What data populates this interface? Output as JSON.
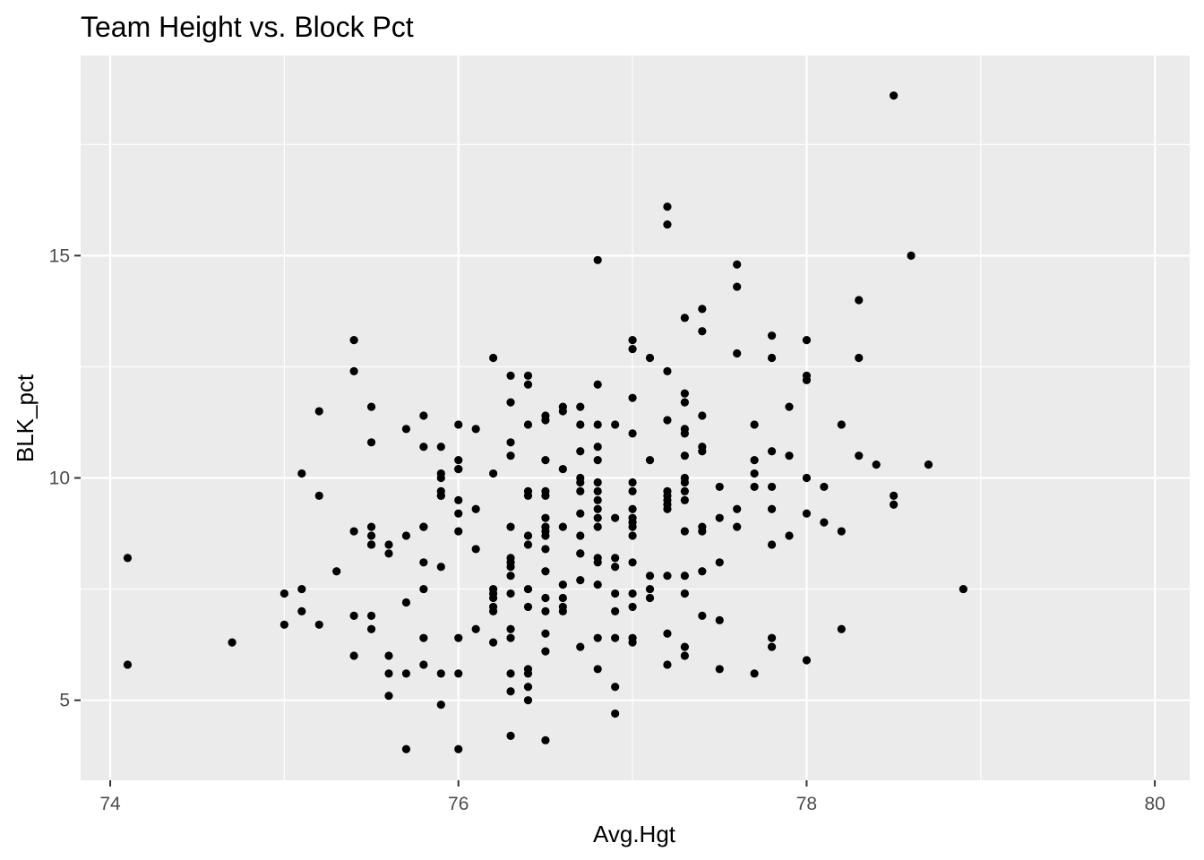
{
  "chart_data": {
    "type": "scatter",
    "title": "Team Height vs. Block Pct",
    "xlabel": "Avg.Hgt",
    "ylabel": "BLK_pct",
    "xlim": [
      73.83,
      80.2
    ],
    "ylim": [
      3.2,
      19.5
    ],
    "x_ticks": [
      74,
      76,
      78,
      80
    ],
    "y_ticks": [
      5,
      10,
      15
    ],
    "x_minor": [
      75,
      77,
      79
    ],
    "y_minor": [
      7.5,
      12.5,
      17.5
    ],
    "grid": true,
    "theme": "ggplot2 grey",
    "point_color": "#000000",
    "panel_color": "#ebebeb",
    "x": [
      74.1,
      74.1,
      74.7,
      75.0,
      75.0,
      75.1,
      75.1,
      75.1,
      75.2,
      75.2,
      75.2,
      75.3,
      75.4,
      75.4,
      75.4,
      75.4,
      75.4,
      75.5,
      75.5,
      75.5,
      75.5,
      75.5,
      75.5,
      75.5,
      75.5,
      75.6,
      75.6,
      75.6,
      75.6,
      75.6,
      75.7,
      75.7,
      75.7,
      75.7,
      75.7,
      75.8,
      75.8,
      75.8,
      75.8,
      75.8,
      75.8,
      75.8,
      75.8,
      75.9,
      75.9,
      75.9,
      75.9,
      75.9,
      75.9,
      75.9,
      75.9,
      75.9,
      76.0,
      76.0,
      76.0,
      76.0,
      76.0,
      76.0,
      76.0,
      76.0,
      76.0,
      76.0,
      76.1,
      76.1,
      76.1,
      76.1,
      76.2,
      76.2,
      76.2,
      76.2,
      76.2,
      76.2,
      76.2,
      76.2,
      76.3,
      76.3,
      76.3,
      76.3,
      76.3,
      76.3,
      76.3,
      76.3,
      76.3,
      76.3,
      76.3,
      76.3,
      76.3,
      76.3,
      76.3,
      76.4,
      76.4,
      76.4,
      76.4,
      76.4,
      76.4,
      76.4,
      76.4,
      76.4,
      76.4,
      76.4,
      76.4,
      76.4,
      76.5,
      76.5,
      76.5,
      76.5,
      76.5,
      76.5,
      76.5,
      76.5,
      76.5,
      76.5,
      76.5,
      76.5,
      76.5,
      76.5,
      76.5,
      76.5,
      76.6,
      76.6,
      76.6,
      76.6,
      76.6,
      76.6,
      76.6,
      76.6,
      76.7,
      76.7,
      76.7,
      76.7,
      76.7,
      76.7,
      76.7,
      76.7,
      76.7,
      76.7,
      76.7,
      76.7,
      76.8,
      76.8,
      76.8,
      76.8,
      76.8,
      76.8,
      76.8,
      76.8,
      76.8,
      76.8,
      76.8,
      76.8,
      76.8,
      76.8,
      76.8,
      76.8,
      76.9,
      76.9,
      76.9,
      76.9,
      76.9,
      76.9,
      76.9,
      76.9,
      76.9,
      77.0,
      77.0,
      77.0,
      77.0,
      77.0,
      77.0,
      77.0,
      77.0,
      77.0,
      77.0,
      77.0,
      77.0,
      77.0,
      77.0,
      77.0,
      77.0,
      77.1,
      77.1,
      77.1,
      77.1,
      77.1,
      77.2,
      77.2,
      77.2,
      77.2,
      77.2,
      77.2,
      77.2,
      77.2,
      77.2,
      77.2,
      77.2,
      77.2,
      77.3,
      77.3,
      77.3,
      77.3,
      77.3,
      77.3,
      77.3,
      77.3,
      77.3,
      77.3,
      77.3,
      77.3,
      77.3,
      77.3,
      77.3,
      77.4,
      77.4,
      77.4,
      77.4,
      77.4,
      77.4,
      77.4,
      77.4,
      77.4,
      77.5,
      77.5,
      77.5,
      77.5,
      77.5,
      77.6,
      77.6,
      77.6,
      77.6,
      77.6,
      77.7,
      77.7,
      77.7,
      77.7,
      77.7,
      77.8,
      77.8,
      77.8,
      77.8,
      77.8,
      77.8,
      77.8,
      77.8,
      77.9,
      77.9,
      77.9,
      78.0,
      78.0,
      78.0,
      78.0,
      78.0,
      78.0,
      78.1,
      78.1,
      78.2,
      78.2,
      78.2,
      78.3,
      78.3,
      78.3,
      78.4,
      78.5,
      78.5,
      78.5,
      78.6,
      78.7,
      78.9
    ],
    "y": [
      8.2,
      5.8,
      6.3,
      7.4,
      6.7,
      10.1,
      7.5,
      7.0,
      11.5,
      9.6,
      6.7,
      7.9,
      13.1,
      12.4,
      8.8,
      6.9,
      6.0,
      11.6,
      10.8,
      8.9,
      8.7,
      8.5,
      6.9,
      6.6,
      8.5,
      8.5,
      8.3,
      6.0,
      5.6,
      5.1,
      11.1,
      8.7,
      7.2,
      5.6,
      3.9,
      11.4,
      10.7,
      8.9,
      8.1,
      7.5,
      6.4,
      5.8,
      8.9,
      10.7,
      10.1,
      10.0,
      9.7,
      9.6,
      8.0,
      5.6,
      4.9,
      9.6,
      11.2,
      10.4,
      10.2,
      9.5,
      9.2,
      8.8,
      6.4,
      5.6,
      3.9,
      10.2,
      11.1,
      9.3,
      8.4,
      6.6,
      12.7,
      10.1,
      7.5,
      7.4,
      7.1,
      7.0,
      6.3,
      7.3,
      12.3,
      11.7,
      10.8,
      10.5,
      8.9,
      8.2,
      8.0,
      7.8,
      7.4,
      6.6,
      6.4,
      5.6,
      5.2,
      4.2,
      8.1,
      12.3,
      12.1,
      11.2,
      9.7,
      9.6,
      8.7,
      8.5,
      7.5,
      7.1,
      5.7,
      5.6,
      5.3,
      5.0,
      11.4,
      11.3,
      10.4,
      9.7,
      9.6,
      9.1,
      8.9,
      8.7,
      8.4,
      7.9,
      7.3,
      7.0,
      6.5,
      6.1,
      4.1,
      8.8,
      11.6,
      11.5,
      10.2,
      8.9,
      7.6,
      7.3,
      7.1,
      7.0,
      11.6,
      11.2,
      10.6,
      10.0,
      9.9,
      9.7,
      9.2,
      8.7,
      8.3,
      7.7,
      6.2,
      8.3,
      14.9,
      12.1,
      11.2,
      10.7,
      10.4,
      9.9,
      9.7,
      9.5,
      9.3,
      9.1,
      8.9,
      8.2,
      8.1,
      7.6,
      6.4,
      5.7,
      11.2,
      9.1,
      8.2,
      8.0,
      7.4,
      7.0,
      6.4,
      5.3,
      4.7,
      13.1,
      12.9,
      11.8,
      11.0,
      9.9,
      9.7,
      9.3,
      9.1,
      9.0,
      8.7,
      8.1,
      7.4,
      7.1,
      6.4,
      6.3,
      8.9,
      12.7,
      10.4,
      7.8,
      7.5,
      7.3,
      16.1,
      15.7,
      12.4,
      11.3,
      9.7,
      9.6,
      9.5,
      9.4,
      7.8,
      6.5,
      5.8,
      9.3,
      13.6,
      11.9,
      11.7,
      11.1,
      11.0,
      10.5,
      10.0,
      9.9,
      9.7,
      9.5,
      8.8,
      7.8,
      7.4,
      6.2,
      6.0,
      13.8,
      13.3,
      11.4,
      10.7,
      10.6,
      8.9,
      8.8,
      7.9,
      6.9,
      9.8,
      9.1,
      8.1,
      6.8,
      5.7,
      14.8,
      14.3,
      12.8,
      9.3,
      8.9,
      11.2,
      10.4,
      10.1,
      9.8,
      5.6,
      13.2,
      12.7,
      10.6,
      9.8,
      9.3,
      8.5,
      6.4,
      6.2,
      11.6,
      10.5,
      8.7,
      13.1,
      12.3,
      12.2,
      10.0,
      9.2,
      5.9,
      9.8,
      9.0,
      11.2,
      8.8,
      6.6,
      14.0,
      12.7,
      10.5,
      10.3,
      18.6,
      9.6,
      9.4,
      15.0,
      10.3,
      7.5
    ]
  }
}
